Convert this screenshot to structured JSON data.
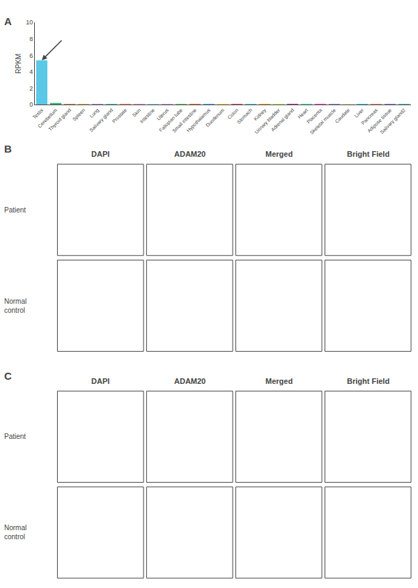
{
  "chart_data": {
    "type": "bar",
    "categories": [
      "Testis",
      "Cerebellum",
      "Thyroid gland",
      "Spleen",
      "Lung",
      "Salivary gland",
      "Prostate",
      "Skin",
      "Intestine",
      "Uterus",
      "Fallopian tube",
      "Small intestine",
      "Hypothalamus",
      "Duodenum",
      "Colon",
      "Stomach",
      "Kidney",
      "Urinary bladder",
      "Adrenal gland",
      "Heart",
      "Placenta",
      "Skeletal muscle",
      "Caudate",
      "Liver",
      "Pancreas",
      "Adipose tissue",
      "Salivary gland2"
    ],
    "values": [
      5.4,
      0.22,
      0.05,
      0.03,
      0.02,
      0.01,
      0.07,
      0.01,
      0.02,
      0.01,
      0.01,
      0.01,
      0.01,
      0.01,
      0.01,
      0.01,
      0.01,
      0.01,
      0.01,
      0.01,
      0.01,
      0.01,
      0.01,
      0.01,
      0.01,
      0.01,
      0.01
    ],
    "colors": [
      "#5bc8e8",
      "#3cb371",
      "#d2691e",
      "#daa520",
      "#9370db",
      "#20b2aa",
      "#ff6347",
      "#ff69b4",
      "#87ceeb",
      "#da70d6",
      "#32cd32",
      "#ff4500",
      "#1e90ff",
      "#ffd700",
      "#dc143c",
      "#00ced1",
      "#ff8c00",
      "#adff2f",
      "#8b008b",
      "#00fa9a",
      "#ff1493",
      "#7b68ee",
      "#f0e68c",
      "#00bfff",
      "#ff6347",
      "#6a5acd",
      "#20b2aa"
    ],
    "ylabel": "RPKM",
    "ylim": [
      0,
      10
    ],
    "yticks": [
      0,
      2,
      4,
      6,
      8,
      10
    ],
    "grid": false,
    "annotations": [
      "A",
      "B",
      "DAPI",
      "ADAM20",
      "Merged",
      "Bright Field",
      "Patient",
      "Normal\ncontrol",
      "C",
      "DAPI",
      "ADAM20",
      "Merged",
      "Bright Field",
      "Patient",
      "Normal\ncontrol"
    ]
  }
}
